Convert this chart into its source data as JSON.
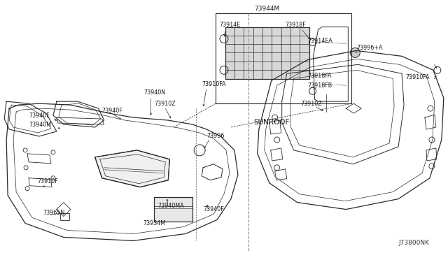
{
  "bg_color": "#ffffff",
  "line_color": "#2a2a2a",
  "fig_width": 6.4,
  "fig_height": 3.72,
  "dpi": 100,
  "diagram_id": "J73800NK",
  "sunroof_label": "SUNROOF",
  "detail_box_label": "73944M"
}
